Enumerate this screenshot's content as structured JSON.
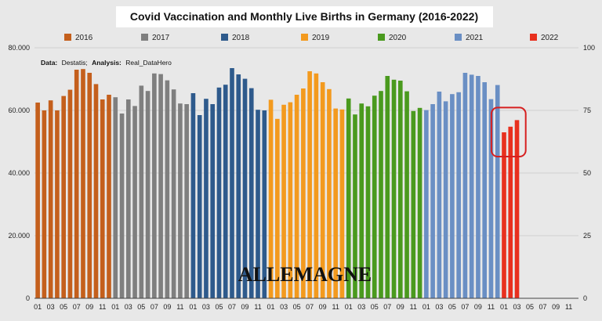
{
  "chart_data": {
    "type": "bar",
    "title": "Covid Vaccination and Monthly Live Births in Germany (2016-2022)",
    "source_label": "Data:",
    "source_value": "Destatis;",
    "analysis_label": "Analysis:",
    "analysis_value": "Real_DataHero",
    "watermark": "ALLEMAGNE",
    "ylim": [
      0,
      80000
    ],
    "y_ticks": [
      "0",
      "20.000",
      "40.000",
      "60.000",
      "80.000"
    ],
    "y_tick_values": [
      0,
      20000,
      40000,
      60000,
      80000
    ],
    "y2lim": [
      0,
      100
    ],
    "y2_ticks": [
      "0",
      "25",
      "50",
      "75",
      "100"
    ],
    "y2_tick_values": [
      0,
      25,
      50,
      75,
      100
    ],
    "x_tick_labels": [
      "01",
      "03",
      "05",
      "07",
      "09",
      "11"
    ],
    "months_per_year": 12,
    "total_slots": 84,
    "series": [
      {
        "name": "2016",
        "color": "#c45f1c",
        "values": [
          62500,
          60000,
          63200,
          60000,
          64600,
          66600,
          73000,
          73200,
          72000,
          68400,
          63500,
          65000
        ]
      },
      {
        "name": "2017",
        "color": "#7f7f7f",
        "values": [
          64200,
          59000,
          63500,
          61400,
          67900,
          66200,
          71800,
          71600,
          69600,
          66700,
          62200,
          62000
        ]
      },
      {
        "name": "2018",
        "color": "#2e5a8c",
        "values": [
          65500,
          58500,
          63700,
          62000,
          67300,
          68200,
          73500,
          71500,
          70100,
          67100,
          60200,
          60000
        ]
      },
      {
        "name": "2019",
        "color": "#f39a1e",
        "values": [
          63400,
          57300,
          61800,
          62600,
          65000,
          67000,
          72500,
          71800,
          69000,
          66800,
          60600,
          60300
        ]
      },
      {
        "name": "2020",
        "color": "#4a9a1e",
        "values": [
          63800,
          58700,
          62200,
          61300,
          64700,
          66200,
          71000,
          69800,
          69500,
          66100,
          59800,
          60800
        ]
      },
      {
        "name": "2021",
        "color": "#6a8fc4",
        "values": [
          60100,
          62000,
          66000,
          62900,
          65200,
          65800,
          72000,
          71400,
          71000,
          69000,
          63600,
          68100
        ]
      },
      {
        "name": "2022",
        "color": "#e8301e",
        "values": [
          53000,
          54800,
          56900
        ]
      }
    ],
    "highlight": {
      "color": "#d62020",
      "start_index": 72,
      "end_index": 74
    }
  }
}
